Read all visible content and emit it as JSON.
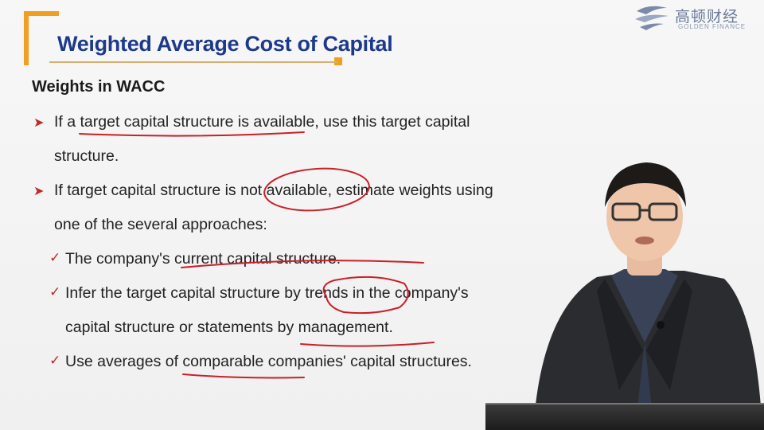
{
  "slide": {
    "title": "Weighted Average Cost of Capital",
    "subheading": "Weights in WACC",
    "bullets": [
      {
        "lines": [
          "If a target capital structure is available, use this target capital",
          "structure."
        ]
      },
      {
        "lines": [
          "If target capital structure is not available, estimate weights using",
          "one of the several approaches:"
        ]
      }
    ],
    "sub_bullets": [
      {
        "lines": [
          "The company's current capital structure."
        ]
      },
      {
        "lines": [
          "Infer the target capital structure by trends in the company's",
          "capital structure or statements by management."
        ]
      },
      {
        "lines": [
          "Use averages of comparable companies' capital structures."
        ]
      }
    ]
  },
  "logo": {
    "chinese_name": "高顿财经",
    "english_name": "GOLDEN FINANCE"
  },
  "colors": {
    "title": "#1d3a8a",
    "accent_orange": "#f0a020",
    "bullet_red": "#c0282a",
    "ink_red": "#c8202a"
  },
  "icons": {
    "bullet": "arrow-bullet-icon",
    "sub_bullet": "check-bullet-icon"
  }
}
